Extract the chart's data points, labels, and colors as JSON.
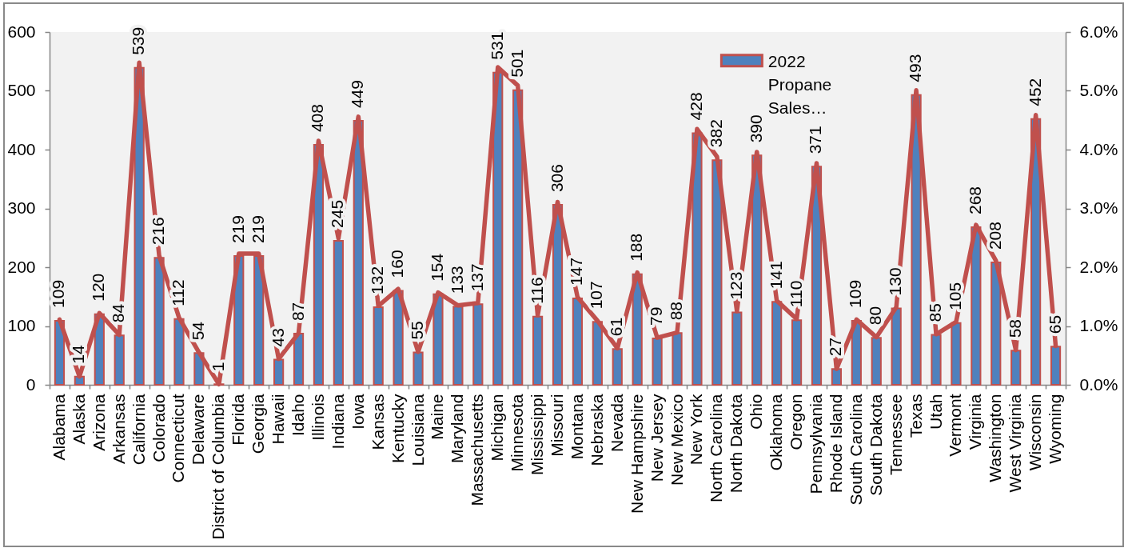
{
  "chart_data": {
    "type": "bar",
    "categories": [
      "Alabama",
      "Alaska",
      "Arizona",
      "Arkansas",
      "California",
      "Colorado",
      "Connecticut",
      "Delaware",
      "District of Columbia",
      "Florida",
      "Georgia",
      "Hawaii",
      "Idaho",
      "Illinois",
      "Indiana",
      "Iowa",
      "Kansas",
      "Kentucky",
      "Louisiana",
      "Maine",
      "Maryland",
      "Massachusetts",
      "Michigan",
      "Minnesota",
      "Mississippi",
      "Missouri",
      "Montana",
      "Nebraska",
      "Nevada",
      "New Hampshire",
      "New Jersey",
      "New Mexico",
      "New York",
      "North Carolina",
      "North Dakota",
      "Ohio",
      "Oklahoma",
      "Oregon",
      "Pennsylvania",
      "Rhode Island",
      "South Carolina",
      "South Dakota",
      "Tennessee",
      "Texas",
      "Utah",
      "Vermont",
      "Virginia",
      "Washington",
      "West Virginia",
      "Wisconsin",
      "Wyoming"
    ],
    "series": [
      {
        "name": "2022 Propane Sales…",
        "type": "bar",
        "color": "#4f81bd",
        "values": [
          109,
          14,
          120,
          84,
          539,
          216,
          112,
          54,
          1,
          219,
          219,
          43,
          87,
          408,
          245,
          449,
          132,
          160,
          55,
          154,
          133,
          137,
          531,
          501,
          116,
          306,
          147,
          107,
          61,
          188,
          79,
          88,
          428,
          382,
          123,
          390,
          141,
          110,
          371,
          27,
          109,
          80,
          130,
          493,
          85,
          105,
          268,
          208,
          58,
          452,
          65
        ],
        "value_labels": [
          "109",
          "14",
          "120",
          "84",
          "539",
          "216",
          "112",
          "54",
          "1",
          "219",
          "219",
          "43",
          "87",
          "408",
          "245",
          "449",
          "132",
          "160",
          "55",
          "154",
          "133",
          "137",
          "531",
          "501",
          "116",
          "306",
          "147",
          "107",
          "61",
          "188",
          "79",
          "88",
          "428",
          "382",
          "123",
          "390",
          "141",
          "110",
          "371",
          "27",
          "109",
          "80",
          "130",
          "493",
          "85",
          "105",
          "268",
          "208",
          "58",
          "452",
          "65"
        ]
      },
      {
        "type": "line",
        "axis": "y2",
        "color": "#c0504d",
        "values": [
          1.11,
          0.14,
          1.22,
          0.85,
          5.48,
          2.2,
          1.14,
          0.55,
          0.01,
          2.23,
          2.23,
          0.44,
          0.88,
          4.15,
          2.49,
          4.56,
          1.34,
          1.63,
          0.56,
          1.57,
          1.35,
          1.39,
          5.4,
          5.09,
          1.18,
          3.11,
          1.49,
          1.09,
          0.62,
          1.91,
          0.8,
          0.89,
          4.35,
          3.88,
          1.25,
          3.96,
          1.43,
          1.12,
          3.77,
          0.27,
          1.11,
          0.81,
          1.32,
          5.01,
          0.86,
          1.07,
          2.72,
          2.11,
          0.59,
          4.59,
          0.66
        ]
      }
    ],
    "ylim": [
      0,
      600
    ],
    "yticks": [
      0,
      100,
      200,
      300,
      400,
      500,
      600
    ],
    "y2lim": [
      0,
      6
    ],
    "y2ticks": [
      {
        "value": 0,
        "label": "0.0%"
      },
      {
        "value": 1,
        "label": "1.0%"
      },
      {
        "value": 2,
        "label": "2.0%"
      },
      {
        "value": 3,
        "label": "3.0%"
      },
      {
        "value": 4,
        "label": "4.0%"
      },
      {
        "value": 5,
        "label": "5.0%"
      },
      {
        "value": 6,
        "label": "6.0%"
      }
    ],
    "legend": "top right"
  }
}
